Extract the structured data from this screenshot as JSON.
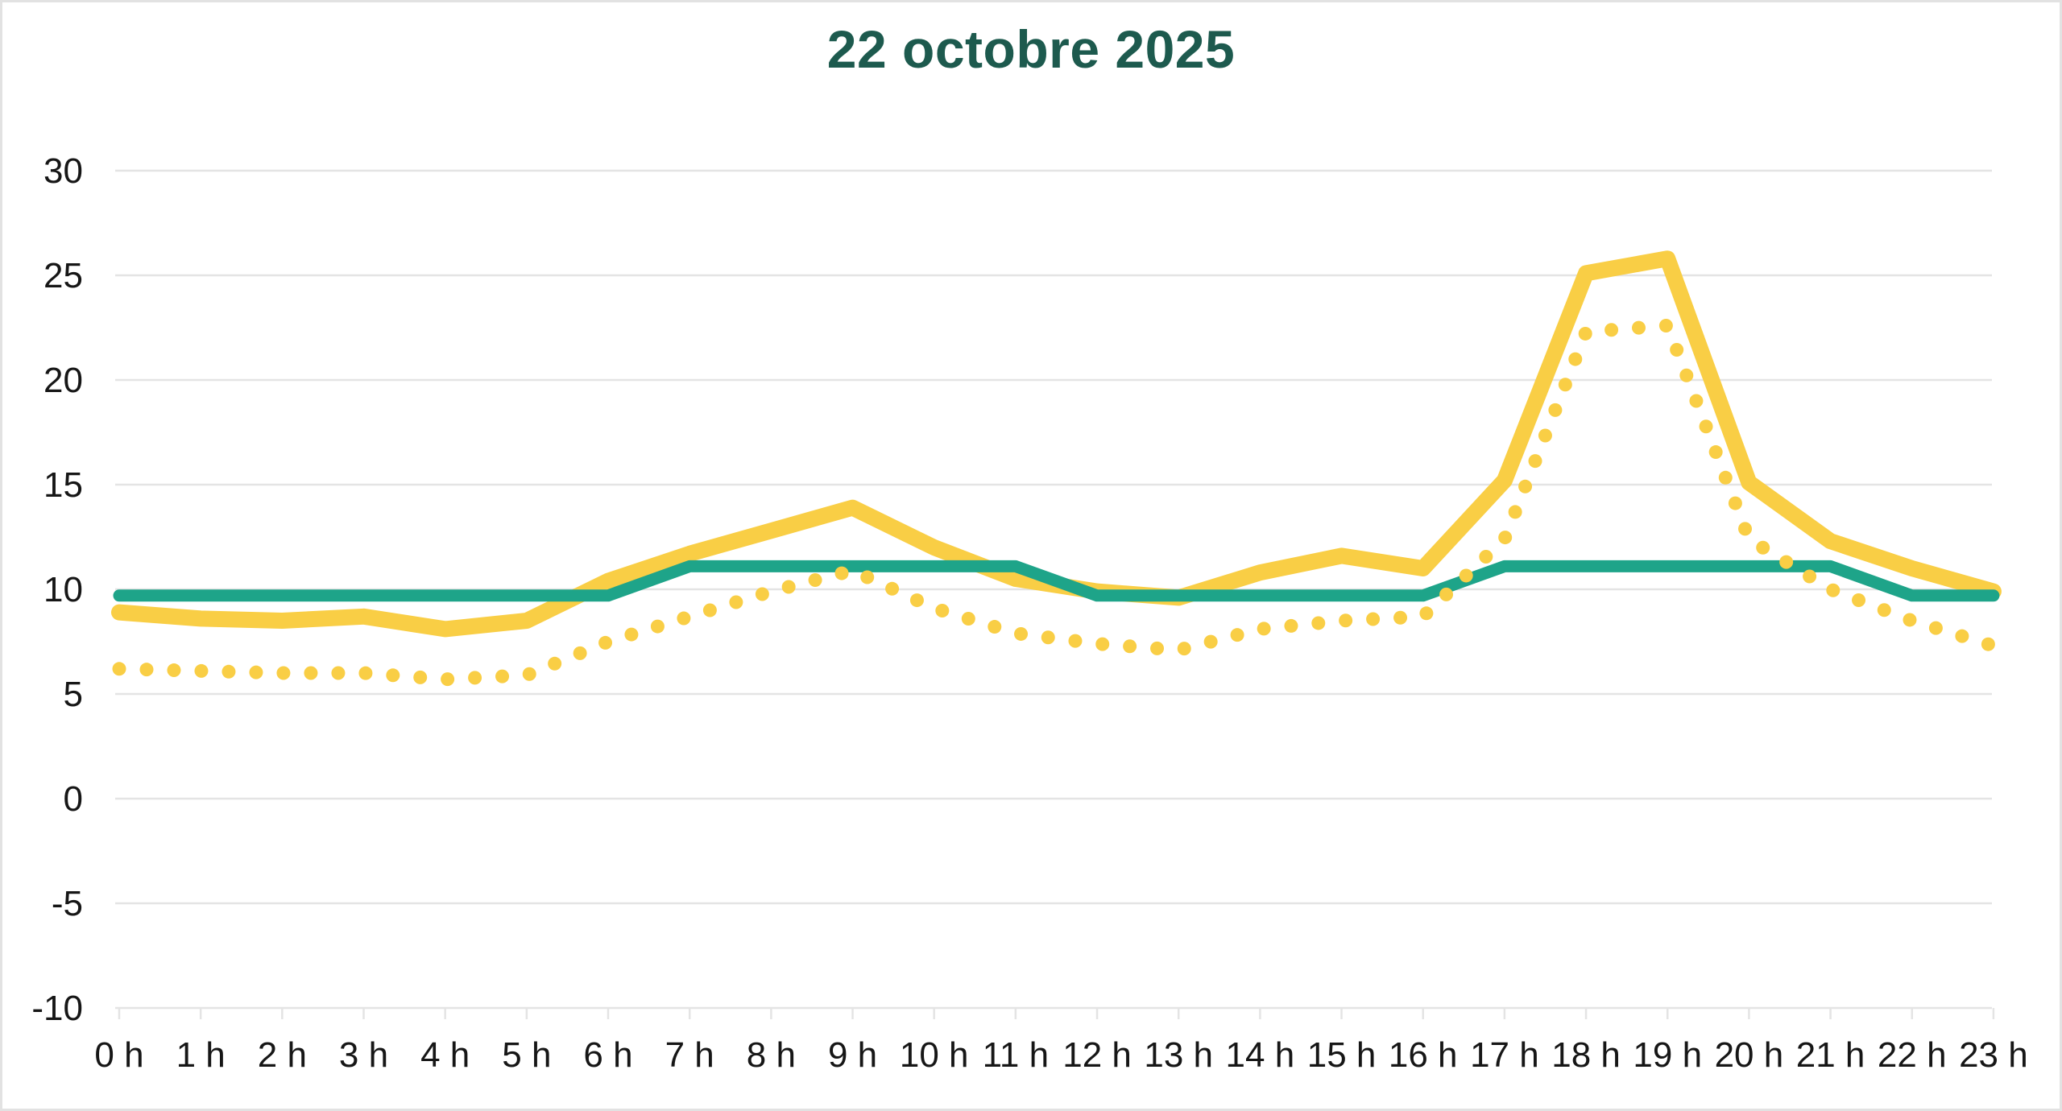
{
  "chart_data": {
    "type": "line",
    "title": "22 octobre 2025",
    "title_color": "#1D5A4E",
    "xlabel": "",
    "ylabel": "",
    "ylim": [
      -10,
      30
    ],
    "grid": "horizontal",
    "grid_color": "#E4E4E4",
    "axis_label_color": "#161616",
    "legend": "none",
    "categories": [
      "0 h",
      "1 h",
      "2 h",
      "3 h",
      "4 h",
      "5 h",
      "6 h",
      "7 h",
      "8 h",
      "9 h",
      "10 h",
      "11 h",
      "12 h",
      "13 h",
      "14 h",
      "15 h",
      "16 h",
      "17 h",
      "18 h",
      "19 h",
      "20 h",
      "21 h",
      "22 h",
      "23 h"
    ],
    "y_ticks": [
      {
        "label": "30",
        "value": 30
      },
      {
        "label": "25",
        "value": 25
      },
      {
        "label": "20",
        "value": 20
      },
      {
        "label": "15",
        "value": 15
      },
      {
        "label": "10",
        "value": 10
      },
      {
        "label": "5",
        "value": 5
      },
      {
        "label": "0",
        "value": 0
      },
      {
        "label": "-5",
        "value": -5
      },
      {
        "label": "-10",
        "value": -10
      }
    ],
    "series": [
      {
        "name": "yellow-solid-line",
        "style": "solid",
        "color": "#F9CE45",
        "values": [
          8.9,
          8.6,
          8.5,
          8.7,
          8.1,
          8.5,
          10.4,
          11.7,
          12.8,
          13.9,
          12.0,
          10.5,
          9.9,
          9.6,
          10.8,
          11.6,
          11.0,
          15.2,
          25.1,
          25.8,
          15.1,
          12.3,
          11.0,
          9.9
        ]
      },
      {
        "name": "teal-solid-line",
        "style": "solid",
        "color": "#1EA489",
        "values": [
          9.7,
          9.7,
          9.7,
          9.7,
          9.7,
          9.7,
          9.7,
          11.1,
          11.1,
          11.1,
          11.1,
          11.1,
          9.7,
          9.7,
          9.7,
          9.7,
          9.7,
          11.1,
          11.1,
          11.1,
          11.1,
          11.1,
          9.7,
          9.7
        ]
      },
      {
        "name": "yellow-dotted-line",
        "style": "dotted",
        "color": "#F9CE45",
        "values": [
          6.2,
          6.1,
          6.0,
          6.0,
          5.7,
          5.9,
          7.5,
          8.7,
          9.9,
          10.9,
          9.1,
          7.9,
          7.4,
          7.1,
          8.1,
          8.5,
          8.7,
          12.4,
          22.3,
          22.6,
          12.4,
          10.0,
          8.5,
          7.3
        ]
      }
    ]
  }
}
